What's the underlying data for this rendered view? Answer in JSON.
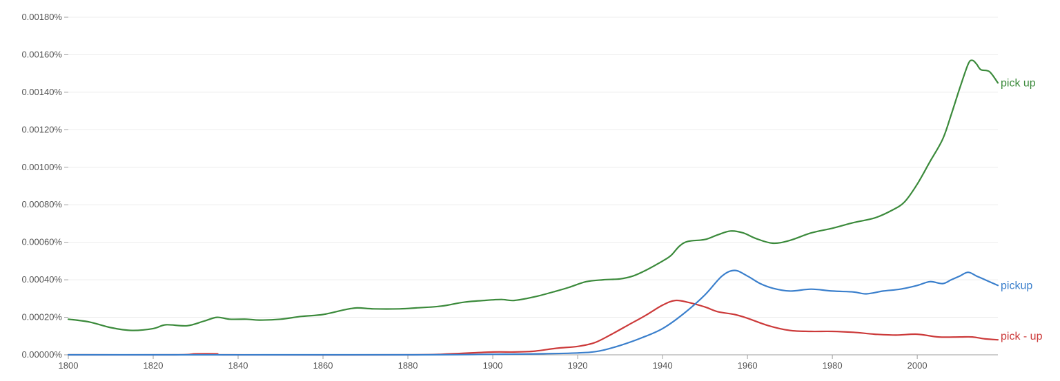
{
  "chart_data": {
    "type": "line",
    "title": "",
    "xlabel": "",
    "ylabel": "",
    "xlim": [
      1800,
      2019
    ],
    "ylim": [
      0,
      0.0018
    ],
    "y_unit": "%",
    "grid": true,
    "legend": "labels at line ends (right)",
    "x_ticks": [
      "1800",
      "1820",
      "1840",
      "1860",
      "1880",
      "1900",
      "1920",
      "1940",
      "1960",
      "1980",
      "2000"
    ],
    "y_ticks": [
      "0.00000%",
      "0.00020%",
      "0.00040%",
      "0.00060%",
      "0.00080%",
      "0.00100%",
      "0.00120%",
      "0.00140%",
      "0.00160%",
      "0.00180%"
    ],
    "series": [
      {
        "name": "pick up",
        "color": "#3b8a3b",
        "points": [
          [
            1800,
            0.00019
          ],
          [
            1805,
            0.000175
          ],
          [
            1810,
            0.000145
          ],
          [
            1815,
            0.00013
          ],
          [
            1820,
            0.00014
          ],
          [
            1823,
            0.00016
          ],
          [
            1828,
            0.000155
          ],
          [
            1832,
            0.00018
          ],
          [
            1835,
            0.0002
          ],
          [
            1838,
            0.00019
          ],
          [
            1842,
            0.00019
          ],
          [
            1845,
            0.000185
          ],
          [
            1850,
            0.00019
          ],
          [
            1855,
            0.000205
          ],
          [
            1860,
            0.000215
          ],
          [
            1865,
            0.00024
          ],
          [
            1868,
            0.00025
          ],
          [
            1872,
            0.000245
          ],
          [
            1878,
            0.000245
          ],
          [
            1882,
            0.00025
          ],
          [
            1888,
            0.00026
          ],
          [
            1893,
            0.00028
          ],
          [
            1898,
            0.00029
          ],
          [
            1902,
            0.000295
          ],
          [
            1905,
            0.00029
          ],
          [
            1910,
            0.00031
          ],
          [
            1915,
            0.00034
          ],
          [
            1918,
            0.00036
          ],
          [
            1922,
            0.00039
          ],
          [
            1926,
            0.0004
          ],
          [
            1930,
            0.000405
          ],
          [
            1933,
            0.00042
          ],
          [
            1936,
            0.00045
          ],
          [
            1940,
            0.0005
          ],
          [
            1942,
            0.00053
          ],
          [
            1944,
            0.00058
          ],
          [
            1946,
            0.000605
          ],
          [
            1950,
            0.000615
          ],
          [
            1953,
            0.00064
          ],
          [
            1956,
            0.00066
          ],
          [
            1959,
            0.00065
          ],
          [
            1962,
            0.00062
          ],
          [
            1966,
            0.000595
          ],
          [
            1970,
            0.00061
          ],
          [
            1975,
            0.00065
          ],
          [
            1980,
            0.000675
          ],
          [
            1985,
            0.000705
          ],
          [
            1990,
            0.00073
          ],
          [
            1994,
            0.00077
          ],
          [
            1997,
            0.000815
          ],
          [
            2000,
            0.00091
          ],
          [
            2003,
            0.00103
          ],
          [
            2006,
            0.00115
          ],
          [
            2008,
            0.00128
          ],
          [
            2010,
            0.00142
          ],
          [
            2012,
            0.00155
          ],
          [
            2013,
            0.00157
          ],
          [
            2014,
            0.00155
          ],
          [
            2015,
            0.00152
          ],
          [
            2017,
            0.00151
          ],
          [
            2019,
            0.00145
          ]
        ]
      },
      {
        "name": "pickup",
        "color": "#3a7fcc",
        "points": [
          [
            1800,
            0.0
          ],
          [
            1880,
            0.0
          ],
          [
            1900,
            3e-06
          ],
          [
            1910,
            5e-06
          ],
          [
            1920,
            1e-05
          ],
          [
            1925,
            2e-05
          ],
          [
            1930,
            5e-05
          ],
          [
            1935,
            9e-05
          ],
          [
            1940,
            0.00014
          ],
          [
            1945,
            0.00022
          ],
          [
            1950,
            0.00032
          ],
          [
            1954,
            0.00042
          ],
          [
            1957,
            0.00045
          ],
          [
            1960,
            0.00042
          ],
          [
            1963,
            0.00038
          ],
          [
            1966,
            0.000355
          ],
          [
            1970,
            0.00034
          ],
          [
            1975,
            0.00035
          ],
          [
            1980,
            0.00034
          ],
          [
            1985,
            0.000335
          ],
          [
            1988,
            0.000325
          ],
          [
            1992,
            0.00034
          ],
          [
            1996,
            0.00035
          ],
          [
            2000,
            0.00037
          ],
          [
            2003,
            0.00039
          ],
          [
            2006,
            0.00038
          ],
          [
            2008,
            0.0004
          ],
          [
            2010,
            0.00042
          ],
          [
            2012,
            0.00044
          ],
          [
            2014,
            0.00042
          ],
          [
            2016,
            0.0004
          ],
          [
            2019,
            0.00037
          ]
        ]
      },
      {
        "name": "pick - up",
        "color": "#cc3a3a",
        "points": [
          [
            1800,
            0.0
          ],
          [
            1825,
            0.0
          ],
          [
            1830,
            5e-06
          ],
          [
            1835,
            5e-06
          ],
          [
            1838,
            0.0
          ],
          [
            1880,
            0.0
          ],
          [
            1890,
            5e-06
          ],
          [
            1900,
            1.5e-05
          ],
          [
            1905,
            1.5e-05
          ],
          [
            1910,
            2e-05
          ],
          [
            1915,
            3.5e-05
          ],
          [
            1920,
            4.5e-05
          ],
          [
            1924,
            6.5e-05
          ],
          [
            1928,
            0.00011
          ],
          [
            1932,
            0.00016
          ],
          [
            1936,
            0.00021
          ],
          [
            1940,
            0.000265
          ],
          [
            1943,
            0.00029
          ],
          [
            1946,
            0.00028
          ],
          [
            1950,
            0.000255
          ],
          [
            1953,
            0.00023
          ],
          [
            1957,
            0.000215
          ],
          [
            1960,
            0.000195
          ],
          [
            1965,
            0.000155
          ],
          [
            1970,
            0.00013
          ],
          [
            1975,
            0.000125
          ],
          [
            1980,
            0.000125
          ],
          [
            1985,
            0.00012
          ],
          [
            1990,
            0.00011
          ],
          [
            1995,
            0.000105
          ],
          [
            2000,
            0.00011
          ],
          [
            2005,
            9.5e-05
          ],
          [
            2010,
            9.5e-05
          ],
          [
            2013,
            9.5e-05
          ],
          [
            2016,
            8.5e-05
          ],
          [
            2019,
            8e-05
          ]
        ]
      }
    ]
  }
}
